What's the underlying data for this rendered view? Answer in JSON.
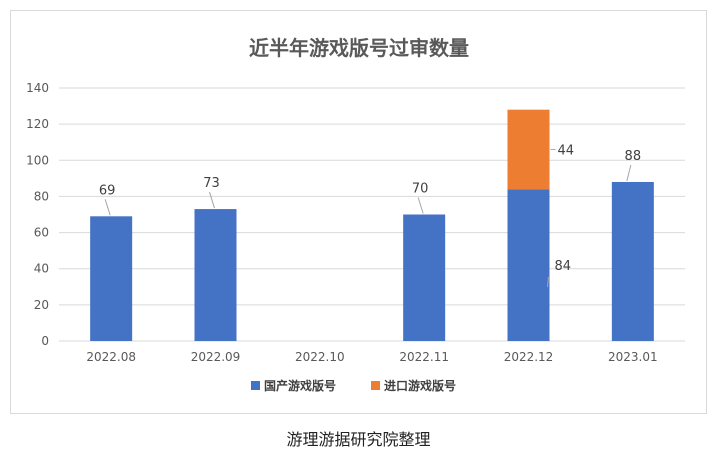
{
  "chart_data": {
    "type": "bar",
    "stacked": true,
    "title": "近半年游戏版号过审数量",
    "categories": [
      "2022.08",
      "2022.09",
      "2022.10",
      "2022.11",
      "2022.12",
      "2023.01"
    ],
    "series": [
      {
        "name": "国产游戏版号",
        "color": "#4472C4",
        "values": [
          69,
          73,
          0,
          70,
          84,
          88
        ],
        "labels": [
          "69",
          "73",
          "",
          "70",
          "84",
          "88"
        ]
      },
      {
        "name": "进口游戏版号",
        "color": "#ED7D31",
        "values": [
          0,
          0,
          0,
          0,
          44,
          0
        ],
        "labels": [
          "",
          "",
          "",
          "",
          "44",
          ""
        ]
      }
    ],
    "ylim": [
      0,
      140
    ],
    "yticks": [
      "0",
      "20",
      "40",
      "60",
      "80",
      "100",
      "120",
      "140"
    ],
    "grid": true,
    "legend_position": "bottom"
  },
  "caption": "游理游据研究院整理"
}
